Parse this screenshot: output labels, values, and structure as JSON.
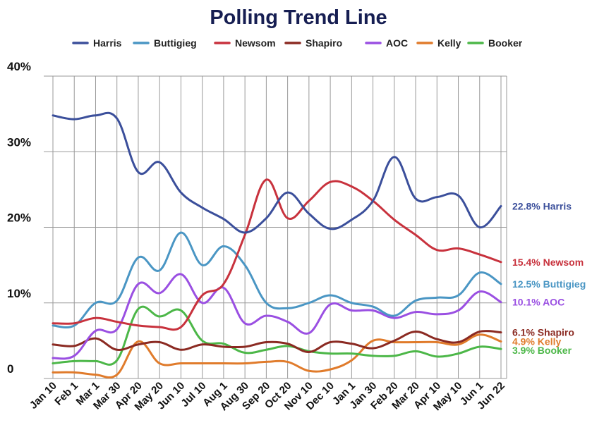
{
  "chart_data": {
    "type": "line",
    "title": "Polling Trend Line",
    "xlabel": "",
    "ylabel": "",
    "ylim": [
      0,
      40
    ],
    "y_ticks": [
      {
        "value": 0,
        "label": "0"
      },
      {
        "value": 10,
        "label": "10%"
      },
      {
        "value": 20,
        "label": "20%"
      },
      {
        "value": 30,
        "label": "30%"
      },
      {
        "value": 40,
        "label": "40%"
      }
    ],
    "x": [
      "Jan 10",
      "Feb 1",
      "Mar 1",
      "Mar 30",
      "Apr 20",
      "May 20",
      "Jun 10",
      "Jul 10",
      "Aug 1",
      "Aug 30",
      "Sep 20",
      "Oct 20",
      "Nov 10",
      "Dec 10",
      "Jan 1",
      "Jan 30",
      "Feb 20",
      "Mar 20",
      "Apr 10",
      "May 10",
      "Jun 1",
      "Jun 22"
    ],
    "grid": true,
    "legend_position": "top",
    "series": [
      {
        "name": "Harris",
        "color": "#3b4f9b",
        "end_label": "22.8% Harris",
        "values": [
          34.8,
          34.3,
          34.8,
          34.4,
          27.3,
          28.6,
          24.6,
          22.6,
          21.1,
          19.3,
          21.2,
          24.6,
          21.8,
          19.8,
          21.0,
          23.5,
          29.3,
          23.8,
          24.0,
          24.2,
          20.0,
          22.8
        ]
      },
      {
        "name": "Buttigieg",
        "color": "#4a96c4",
        "end_label": "12.5% Buttigieg",
        "values": [
          7.0,
          7.0,
          10.0,
          10.3,
          16.0,
          14.3,
          19.3,
          15.0,
          17.5,
          15.0,
          10.0,
          9.3,
          10.0,
          11.0,
          10.0,
          9.5,
          8.3,
          10.3,
          10.7,
          11.0,
          14.0,
          12.5
        ]
      },
      {
        "name": "Newsom",
        "color": "#c8323d",
        "end_label": "15.4% Newsom",
        "values": [
          7.3,
          7.3,
          8.0,
          7.5,
          7.0,
          6.8,
          6.8,
          11.0,
          12.5,
          19.0,
          26.3,
          21.2,
          23.5,
          26.0,
          25.4,
          23.5,
          21.0,
          19.0,
          17.0,
          17.2,
          16.4,
          15.4
        ]
      },
      {
        "name": "Shapiro",
        "color": "#8b2a22",
        "end_label": "6.1% Shapiro",
        "values": [
          4.5,
          4.3,
          5.3,
          3.8,
          4.5,
          4.8,
          3.8,
          4.5,
          4.2,
          4.2,
          4.8,
          4.6,
          3.5,
          4.8,
          4.6,
          4.0,
          5.0,
          6.2,
          5.2,
          4.8,
          6.2,
          6.1
        ]
      },
      {
        "name": "AOC",
        "color": "#9a4fe2",
        "end_label": "10.1% AOC",
        "values": [
          2.7,
          3.0,
          6.3,
          6.5,
          12.5,
          11.3,
          13.8,
          10.0,
          12.0,
          7.3,
          8.3,
          7.5,
          6.0,
          9.8,
          9.0,
          9.0,
          8.0,
          8.8,
          8.5,
          9.0,
          11.5,
          10.1
        ]
      },
      {
        "name": "Kelly",
        "color": "#e07b2b",
        "end_label": "4.9% Kelly",
        "values": [
          0.8,
          0.8,
          0.5,
          0.5,
          4.9,
          2.0,
          2.0,
          2.0,
          2.0,
          2.0,
          2.2,
          2.2,
          1.0,
          1.2,
          2.4,
          5.0,
          4.8,
          4.8,
          4.8,
          4.5,
          5.8,
          4.9
        ]
      },
      {
        "name": "Booker",
        "color": "#4cb748",
        "end_label": "3.9% Booker",
        "values": [
          2.0,
          2.3,
          2.3,
          2.4,
          9.2,
          8.2,
          9.0,
          5.0,
          4.6,
          3.4,
          3.8,
          4.3,
          3.6,
          3.3,
          3.3,
          3.0,
          3.0,
          3.6,
          2.9,
          3.3,
          4.2,
          3.9
        ]
      }
    ]
  }
}
